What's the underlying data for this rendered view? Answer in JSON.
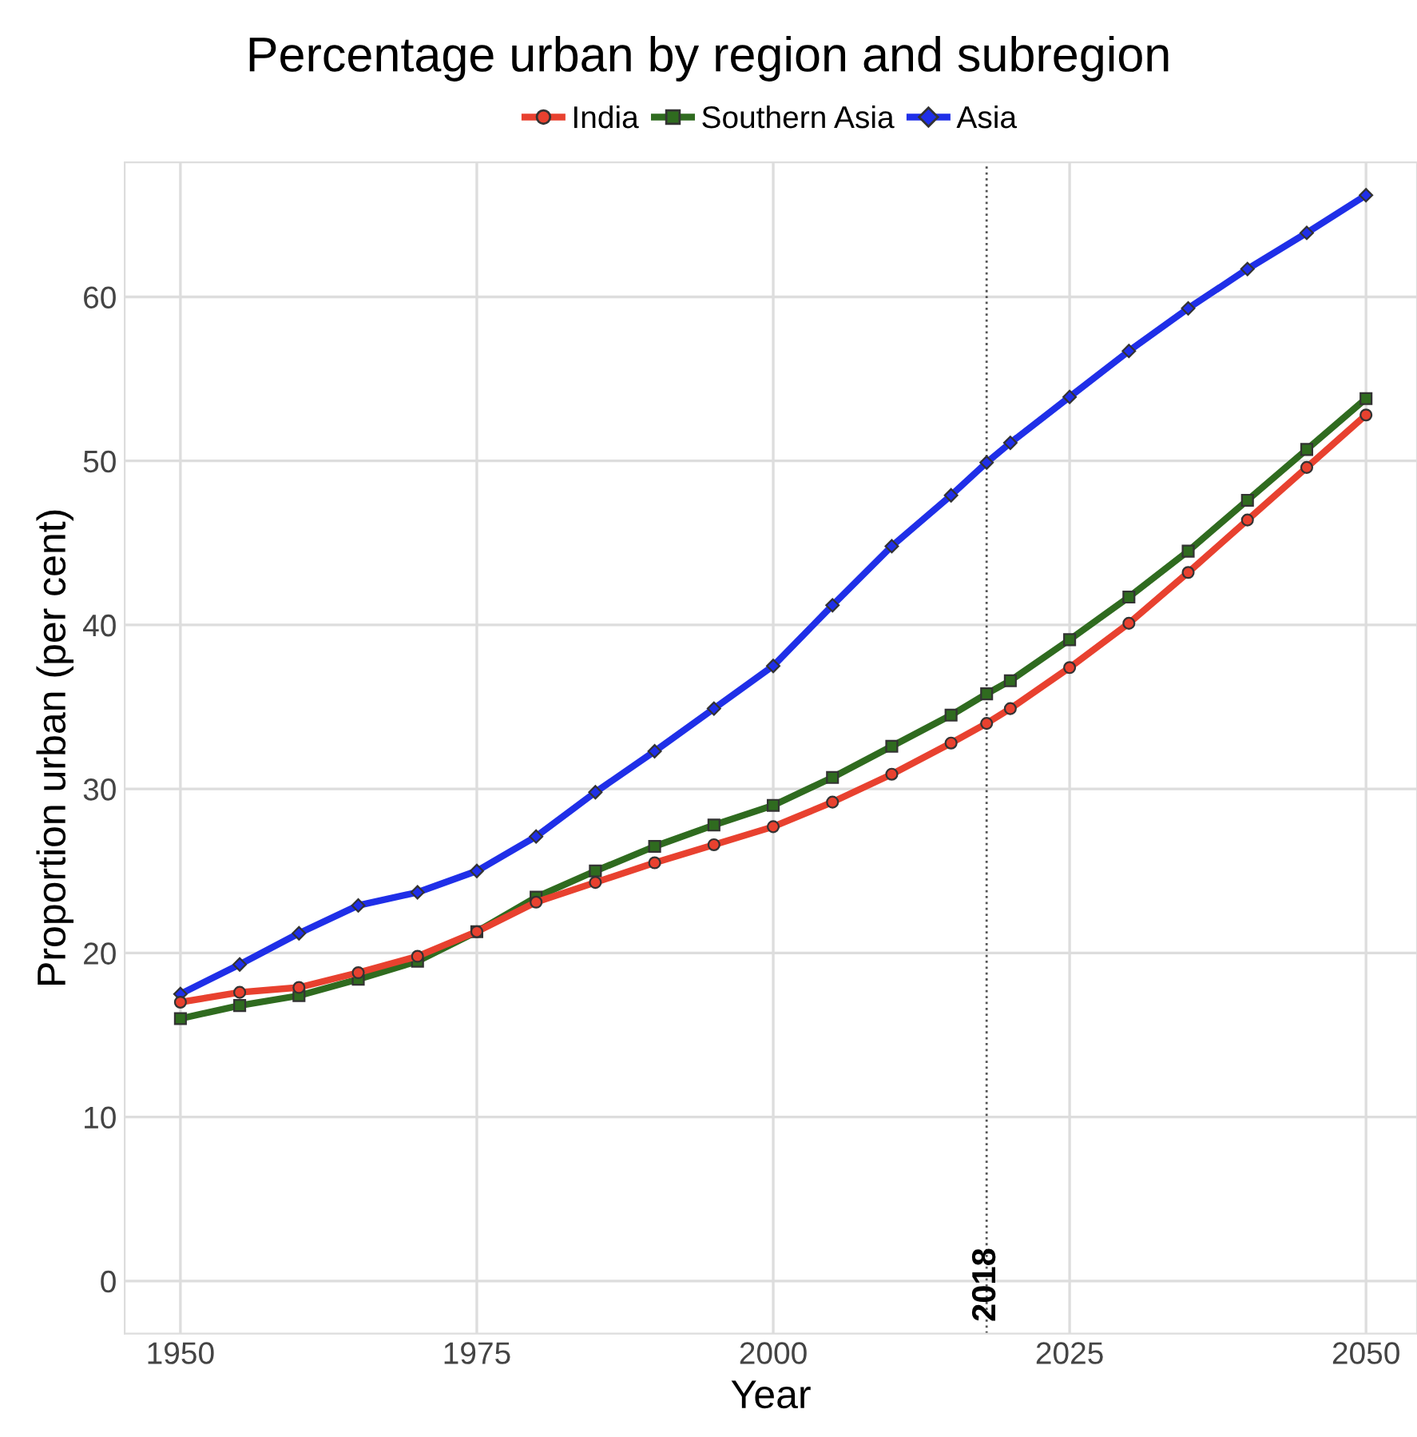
{
  "chart_data": {
    "type": "line",
    "title": "Percentage urban by region and subregion",
    "xlabel": "Year",
    "ylabel": "Proportion urban (per cent)",
    "x": [
      1950,
      1955,
      1960,
      1965,
      1970,
      1975,
      1980,
      1985,
      1990,
      1995,
      2000,
      2005,
      2010,
      2015,
      2018,
      2020,
      2025,
      2030,
      2035,
      2040,
      2045,
      2050
    ],
    "series": [
      {
        "name": "India",
        "color": "#e8412f",
        "marker": "circle",
        "values": [
          17.0,
          17.6,
          17.9,
          18.8,
          19.8,
          21.3,
          23.1,
          24.3,
          25.5,
          26.6,
          27.7,
          29.2,
          30.9,
          32.8,
          34.0,
          34.9,
          37.4,
          40.1,
          43.2,
          46.4,
          49.6,
          52.8
        ]
      },
      {
        "name": "Southern Asia",
        "color": "#2f6b1f",
        "marker": "square",
        "values": [
          16.0,
          16.8,
          17.4,
          18.4,
          19.5,
          21.3,
          23.4,
          25.0,
          26.5,
          27.8,
          29.0,
          30.7,
          32.6,
          34.5,
          35.8,
          36.6,
          39.1,
          41.7,
          44.5,
          47.6,
          50.7,
          53.8
        ]
      },
      {
        "name": "Asia",
        "color": "#1f2fe8",
        "marker": "diamond",
        "values": [
          17.5,
          19.3,
          21.2,
          22.9,
          23.7,
          25.0,
          27.1,
          29.8,
          32.3,
          34.9,
          37.5,
          41.2,
          44.8,
          47.9,
          49.9,
          51.1,
          53.9,
          56.7,
          59.3,
          61.7,
          63.9,
          66.2
        ]
      }
    ],
    "xlim": [
      1945.3,
      2054.3
    ],
    "ylim": [
      -3.2,
      68.2
    ],
    "xticks": [
      1950,
      1975,
      2000,
      2025,
      2050
    ],
    "yticks": [
      0,
      10,
      20,
      30,
      40,
      50,
      60
    ],
    "ref_lines": [
      {
        "axis": "x",
        "value": 2018,
        "label": "2018",
        "line_style": "dotted",
        "color": "#555555"
      }
    ],
    "grid": true,
    "legend": "top",
    "line_style": "solid"
  }
}
